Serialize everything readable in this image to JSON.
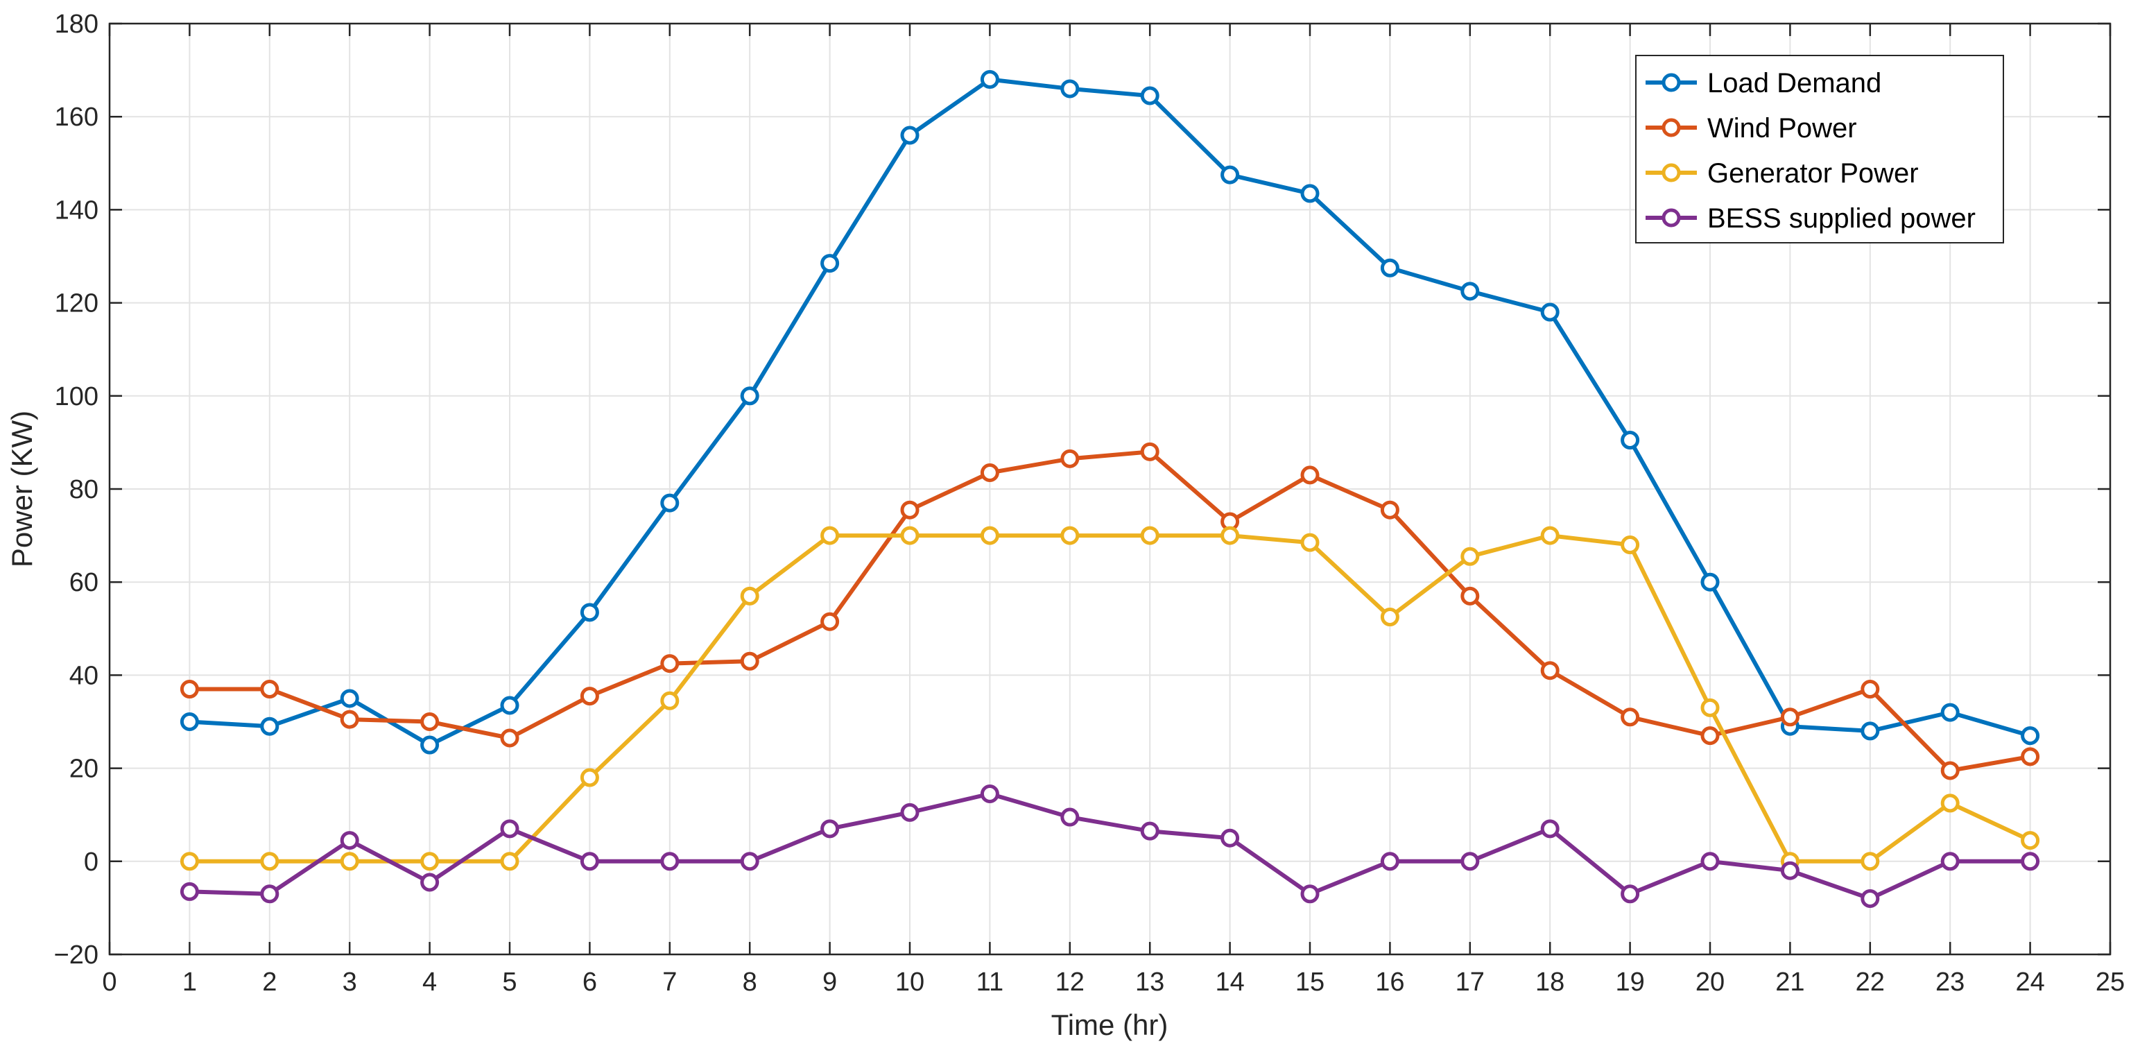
{
  "chart_data": {
    "type": "line",
    "xlabel": "Time (hr)",
    "ylabel": "Power (KW)",
    "xlim": [
      0,
      25
    ],
    "ylim": [
      -20,
      180
    ],
    "xticks": [
      0,
      1,
      2,
      3,
      4,
      5,
      6,
      7,
      8,
      9,
      10,
      11,
      12,
      13,
      14,
      15,
      16,
      17,
      18,
      19,
      20,
      21,
      22,
      23,
      24,
      25
    ],
    "yticks": [
      -20,
      0,
      20,
      40,
      60,
      80,
      100,
      120,
      140,
      160,
      180
    ],
    "grid": true,
    "legend_position": "top-right",
    "x": [
      1,
      2,
      3,
      4,
      5,
      6,
      7,
      8,
      9,
      10,
      11,
      12,
      13,
      14,
      15,
      16,
      17,
      18,
      19,
      20,
      21,
      22,
      23,
      24
    ],
    "series": [
      {
        "name": "Load Demand",
        "color": "#0072BD",
        "values": [
          30,
          29,
          35,
          25,
          33.5,
          53.5,
          77,
          100,
          128.5,
          156,
          168,
          166,
          164.5,
          147.5,
          143.5,
          127.5,
          122.5,
          118,
          90.5,
          60,
          29,
          28,
          32,
          27
        ]
      },
      {
        "name": "Wind Power",
        "color": "#D95319",
        "values": [
          37,
          37,
          30.5,
          30,
          26.5,
          35.5,
          42.5,
          43,
          51.5,
          75.5,
          83.5,
          86.5,
          88,
          73,
          83,
          75.5,
          57,
          41,
          31,
          27,
          31,
          37,
          19.5,
          22.5
        ]
      },
      {
        "name": "Generator Power",
        "color": "#EDB120",
        "values": [
          0,
          0,
          0,
          0,
          0,
          18,
          34.5,
          57,
          70,
          70,
          70,
          70,
          70,
          70,
          68.5,
          52.5,
          65.5,
          70,
          68,
          33,
          0,
          0,
          12.5,
          4.5
        ]
      },
      {
        "name": "BESS supplied power",
        "color": "#7E2F8E",
        "values": [
          -6.5,
          -7,
          4.5,
          -4.5,
          7,
          0,
          0,
          0,
          7,
          10.5,
          14.5,
          9.5,
          6.5,
          5,
          -7,
          0,
          0,
          7,
          -7,
          0,
          -2,
          -8,
          0,
          0
        ]
      }
    ]
  }
}
